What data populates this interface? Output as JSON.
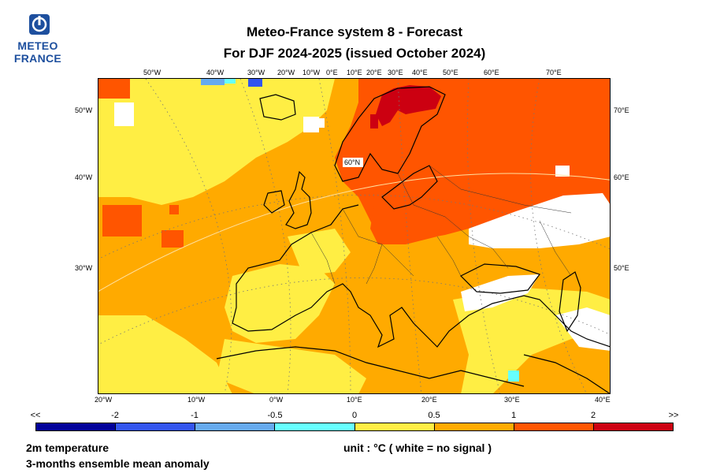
{
  "logo": {
    "line1": "METEO",
    "line2": "FRANCE"
  },
  "title": {
    "line1": "Meteo-France system 8  -  Forecast",
    "line2": "For DJF 2024-2025      (issued October 2024)"
  },
  "map": {
    "top_ticks": [
      "50°W",
      "40°W",
      "30°W",
      "20°W",
      "10°W",
      "0°E",
      "10°E",
      "20°E",
      "30°E",
      "40°E",
      "50°E",
      "60°E",
      "70°E"
    ],
    "bottom_ticks": [
      "20°W",
      "10°W",
      "0°W",
      "10°E",
      "20°E",
      "30°E",
      "40°E"
    ],
    "left_ticks": [
      "50°W",
      "40°W",
      "30°W"
    ],
    "right_ticks": [
      "70°E",
      "60°E",
      "50°E"
    ],
    "inner_label": "60°N"
  },
  "colorbar": {
    "labels": [
      "<<",
      "-2",
      "-1",
      "-0.5",
      "0",
      "0.5",
      "1",
      "2",
      ">>"
    ],
    "colors": [
      "#000099",
      "#3355ee",
      "#66aaee",
      "#66ffff",
      "#ffee44",
      "#ffaa00",
      "#ff5500",
      "#cc0011"
    ]
  },
  "footer": {
    "variable": "2m temperature",
    "description": "3-months ensemble mean anomaly",
    "unit_note": "unit : °C  ( white = no signal )"
  }
}
